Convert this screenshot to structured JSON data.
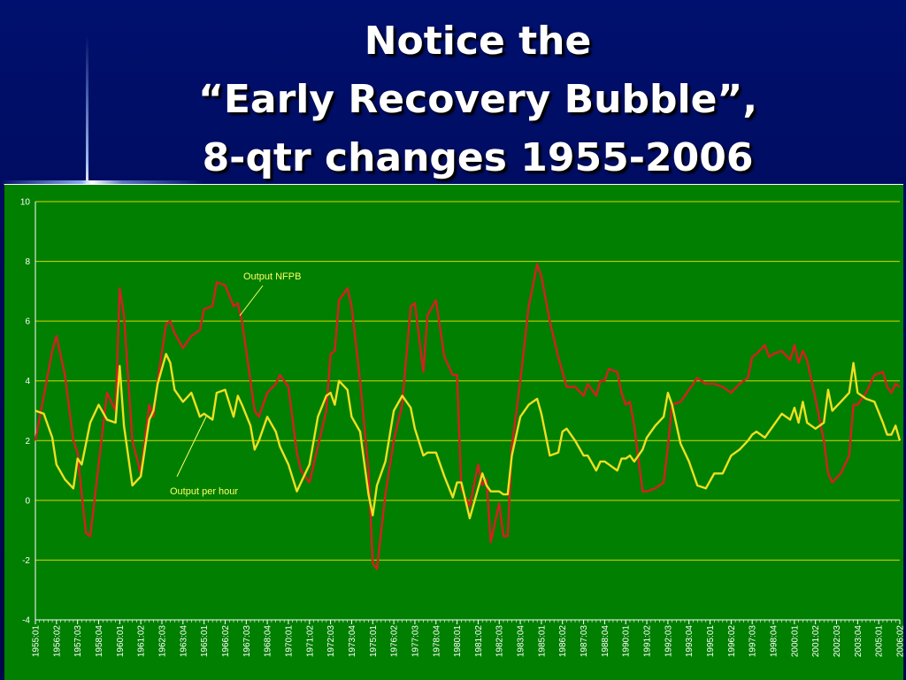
{
  "slide": {
    "title_lines": [
      "Notice the",
      "“Early Recovery Bubble”,",
      "8-qtr changes 1955-2006"
    ]
  },
  "colors": {
    "background": "#000a5a",
    "plot_area": "#007f00",
    "gridline": "#d8d800",
    "series_nfpb": "#d42020",
    "series_per_hour": "#f0e020"
  },
  "chart_data": {
    "type": "line",
    "ylim": [
      -4,
      10
    ],
    "yticks": [
      10,
      8,
      6,
      4,
      2,
      0,
      -2,
      -4
    ],
    "grid": true,
    "x_tick_labels": [
      "1955:01",
      "1956:02",
      "1957:03",
      "1958:04",
      "1960:01",
      "1961:02",
      "1962:03",
      "1963:04",
      "1965:01",
      "1966:02",
      "1967:03",
      "1968:04",
      "1970:01",
      "1971:02",
      "1972:03",
      "1973:04",
      "1975:01",
      "1976:02",
      "1977:03",
      "1978:04",
      "1980:01",
      "1981:02",
      "1982:03",
      "1983:04",
      "1985:01",
      "1986:02",
      "1987:03",
      "1988:04",
      "1990:01",
      "1991:02",
      "1992:03",
      "1993:04",
      "1995:01",
      "1996:02",
      "1997:03",
      "1998:04",
      "2000:01",
      "2001:02",
      "2002:03",
      "2003:04",
      "2005:01",
      "2006:02"
    ],
    "annotations": [
      {
        "text": "Output NFPB",
        "series": "nfpb"
      },
      {
        "text": "Output per hour",
        "series": "per_hour"
      }
    ],
    "series": [
      {
        "key": "nfpb",
        "name": "Output NFPB",
        "color": "#d42020",
        "points": [
          [
            "1955:01",
            2.0
          ],
          [
            "1955:03",
            3.5
          ],
          [
            "1956:01",
            5.0
          ],
          [
            "1956:02",
            5.5
          ],
          [
            "1956:04",
            4.2
          ],
          [
            "1957:02",
            2.0
          ],
          [
            "1957:03",
            1.6
          ],
          [
            "1957:04",
            0.2
          ],
          [
            "1958:01",
            -1.1
          ],
          [
            "1958:02",
            -1.2
          ],
          [
            "1958:04",
            1.2
          ],
          [
            "1959:02",
            3.6
          ],
          [
            "1959:04",
            3.0
          ],
          [
            "1960:01",
            7.1
          ],
          [
            "1960:02",
            6.2
          ],
          [
            "1960:04",
            2.0
          ],
          [
            "1961:02",
            0.9
          ],
          [
            "1961:04",
            3.2
          ],
          [
            "1962:01",
            2.8
          ],
          [
            "1962:02",
            4.0
          ],
          [
            "1962:04",
            5.9
          ],
          [
            "1963:01",
            6.0
          ],
          [
            "1963:02",
            5.6
          ],
          [
            "1963:04",
            5.1
          ],
          [
            "1964:02",
            5.5
          ],
          [
            "1964:04",
            5.7
          ],
          [
            "1965:01",
            6.4
          ],
          [
            "1965:03",
            6.5
          ],
          [
            "1965:04",
            7.3
          ],
          [
            "1966:02",
            7.2
          ],
          [
            "1966:04",
            6.5
          ],
          [
            "1967:01",
            6.6
          ],
          [
            "1967:02",
            6.0
          ],
          [
            "1967:04",
            4.0
          ],
          [
            "1968:01",
            3.0
          ],
          [
            "1968:02",
            2.8
          ],
          [
            "1968:04",
            3.6
          ],
          [
            "1969:02",
            3.9
          ],
          [
            "1969:03",
            4.2
          ],
          [
            "1970:01",
            3.8
          ],
          [
            "1970:03",
            1.6
          ],
          [
            "1970:04",
            1.0
          ],
          [
            "1971:02",
            0.6
          ],
          [
            "1971:04",
            1.8
          ],
          [
            "1972:02",
            3.0
          ],
          [
            "1972:03",
            4.9
          ],
          [
            "1972:04",
            5.0
          ],
          [
            "1973:01",
            6.7
          ],
          [
            "1973:03",
            7.1
          ],
          [
            "1973:04",
            6.5
          ],
          [
            "1974:02",
            4.0
          ],
          [
            "1974:04",
            1.0
          ],
          [
            "1975:01",
            -2.1
          ],
          [
            "1975:02",
            -2.3
          ],
          [
            "1975:04",
            0.2
          ],
          [
            "1976:02",
            2.0
          ],
          [
            "1976:04",
            3.2
          ],
          [
            "1977:02",
            6.5
          ],
          [
            "1977:03",
            6.6
          ],
          [
            "1978:01",
            4.3
          ],
          [
            "1978:02",
            6.2
          ],
          [
            "1978:04",
            6.7
          ],
          [
            "1979:02",
            4.8
          ],
          [
            "1979:04",
            4.2
          ],
          [
            "1980:01",
            4.2
          ],
          [
            "1980:02",
            0.4
          ],
          [
            "1980:04",
            -0.2
          ],
          [
            "1981:02",
            1.2
          ],
          [
            "1981:03",
            0.5
          ],
          [
            "1981:04",
            0.7
          ],
          [
            "1982:01",
            -1.4
          ],
          [
            "1982:03",
            -0.1
          ],
          [
            "1982:04",
            -1.2
          ],
          [
            "1983:01",
            -1.2
          ],
          [
            "1983:02",
            1.8
          ],
          [
            "1983:04",
            4.0
          ],
          [
            "1984:02",
            6.5
          ],
          [
            "1984:04",
            7.9
          ],
          [
            "1985:01",
            7.5
          ],
          [
            "1985:03",
            6.0
          ],
          [
            "1986:01",
            4.8
          ],
          [
            "1986:02",
            4.3
          ],
          [
            "1986:03",
            3.8
          ],
          [
            "1987:01",
            3.8
          ],
          [
            "1987:03",
            3.5
          ],
          [
            "1987:04",
            3.9
          ],
          [
            "1988:02",
            3.5
          ],
          [
            "1988:03",
            4.0
          ],
          [
            "1988:04",
            4.0
          ],
          [
            "1989:01",
            4.4
          ],
          [
            "1989:03",
            4.3
          ],
          [
            "1989:04",
            3.6
          ],
          [
            "1990:01",
            3.2
          ],
          [
            "1990:02",
            3.3
          ],
          [
            "1990:03",
            2.5
          ],
          [
            "1991:01",
            0.3
          ],
          [
            "1991:02",
            0.3
          ],
          [
            "1991:04",
            0.4
          ],
          [
            "1992:02",
            0.6
          ],
          [
            "1992:03",
            1.8
          ],
          [
            "1992:04",
            3.2
          ],
          [
            "1993:02",
            3.3
          ],
          [
            "1993:04",
            3.7
          ],
          [
            "1994:02",
            4.1
          ],
          [
            "1994:04",
            3.9
          ],
          [
            "1995:02",
            3.9
          ],
          [
            "1995:04",
            3.8
          ],
          [
            "1996:02",
            3.6
          ],
          [
            "1996:04",
            3.9
          ],
          [
            "1997:02",
            4.1
          ],
          [
            "1997:03",
            4.8
          ],
          [
            "1997:04",
            4.9
          ],
          [
            "1998:02",
            5.2
          ],
          [
            "1998:03",
            4.8
          ],
          [
            "1998:04",
            4.9
          ],
          [
            "1999:02",
            5.0
          ],
          [
            "1999:04",
            4.7
          ],
          [
            "2000:01",
            5.2
          ],
          [
            "2000:02",
            4.6
          ],
          [
            "2000:03",
            5.0
          ],
          [
            "2000:04",
            4.7
          ],
          [
            "2001:02",
            3.4
          ],
          [
            "2001:04",
            2.0
          ],
          [
            "2002:01",
            0.9
          ],
          [
            "2002:02",
            0.6
          ],
          [
            "2002:04",
            0.9
          ],
          [
            "2003:02",
            1.5
          ],
          [
            "2003:03",
            3.2
          ],
          [
            "2003:04",
            3.2
          ],
          [
            "2004:02",
            3.6
          ],
          [
            "2004:04",
            4.2
          ],
          [
            "2005:02",
            4.3
          ],
          [
            "2005:03",
            3.8
          ],
          [
            "2005:04",
            3.6
          ],
          [
            "2006:01",
            3.9
          ],
          [
            "2006:02",
            3.8
          ]
        ]
      },
      {
        "key": "per_hour",
        "name": "Output per hour",
        "color": "#f0e020",
        "points": [
          [
            "1955:01",
            3.0
          ],
          [
            "1955:03",
            2.9
          ],
          [
            "1956:01",
            2.1
          ],
          [
            "1956:02",
            1.2
          ],
          [
            "1956:04",
            0.7
          ],
          [
            "1957:02",
            0.4
          ],
          [
            "1957:03",
            1.4
          ],
          [
            "1957:04",
            1.2
          ],
          [
            "1958:02",
            2.6
          ],
          [
            "1958:04",
            3.2
          ],
          [
            "1959:02",
            2.7
          ],
          [
            "1959:04",
            2.6
          ],
          [
            "1960:01",
            4.5
          ],
          [
            "1960:02",
            2.5
          ],
          [
            "1960:04",
            0.5
          ],
          [
            "1961:02",
            0.8
          ],
          [
            "1961:04",
            2.7
          ],
          [
            "1962:01",
            3.0
          ],
          [
            "1962:02",
            3.9
          ],
          [
            "1962:04",
            4.9
          ],
          [
            "1963:01",
            4.6
          ],
          [
            "1963:02",
            3.7
          ],
          [
            "1963:04",
            3.3
          ],
          [
            "1964:02",
            3.6
          ],
          [
            "1964:04",
            2.8
          ],
          [
            "1965:01",
            2.9
          ],
          [
            "1965:03",
            2.7
          ],
          [
            "1965:04",
            3.6
          ],
          [
            "1966:02",
            3.7
          ],
          [
            "1966:04",
            2.8
          ],
          [
            "1967:01",
            3.5
          ],
          [
            "1967:02",
            3.2
          ],
          [
            "1967:04",
            2.5
          ],
          [
            "1968:01",
            1.7
          ],
          [
            "1968:02",
            2.0
          ],
          [
            "1968:04",
            2.8
          ],
          [
            "1969:02",
            2.3
          ],
          [
            "1969:03",
            1.8
          ],
          [
            "1970:01",
            1.2
          ],
          [
            "1970:03",
            0.3
          ],
          [
            "1970:04",
            0.6
          ],
          [
            "1971:02",
            1.2
          ],
          [
            "1971:04",
            2.8
          ],
          [
            "1972:02",
            3.5
          ],
          [
            "1972:03",
            3.6
          ],
          [
            "1972:04",
            3.2
          ],
          [
            "1973:01",
            4.0
          ],
          [
            "1973:03",
            3.7
          ],
          [
            "1973:04",
            2.8
          ],
          [
            "1974:02",
            2.3
          ],
          [
            "1974:04",
            0.2
          ],
          [
            "1975:01",
            -0.5
          ],
          [
            "1975:02",
            0.5
          ],
          [
            "1975:04",
            1.3
          ],
          [
            "1976:02",
            3.0
          ],
          [
            "1976:04",
            3.5
          ],
          [
            "1977:02",
            3.1
          ],
          [
            "1977:03",
            2.4
          ],
          [
            "1978:01",
            1.5
          ],
          [
            "1978:02",
            1.6
          ],
          [
            "1978:04",
            1.6
          ],
          [
            "1979:02",
            0.8
          ],
          [
            "1979:04",
            0.1
          ],
          [
            "1980:01",
            0.6
          ],
          [
            "1980:02",
            0.6
          ],
          [
            "1980:04",
            -0.6
          ],
          [
            "1981:02",
            0.4
          ],
          [
            "1981:03",
            0.9
          ],
          [
            "1981:04",
            0.5
          ],
          [
            "1982:01",
            0.3
          ],
          [
            "1982:03",
            0.3
          ],
          [
            "1982:04",
            0.2
          ],
          [
            "1983:01",
            0.2
          ],
          [
            "1983:02",
            1.5
          ],
          [
            "1983:04",
            2.8
          ],
          [
            "1984:02",
            3.2
          ],
          [
            "1984:04",
            3.4
          ],
          [
            "1985:01",
            2.9
          ],
          [
            "1985:03",
            1.5
          ],
          [
            "1986:01",
            1.6
          ],
          [
            "1986:02",
            2.3
          ],
          [
            "1986:03",
            2.4
          ],
          [
            "1987:01",
            2.0
          ],
          [
            "1987:03",
            1.5
          ],
          [
            "1987:04",
            1.5
          ],
          [
            "1988:02",
            1.0
          ],
          [
            "1988:03",
            1.3
          ],
          [
            "1988:04",
            1.3
          ],
          [
            "1989:01",
            1.2
          ],
          [
            "1989:03",
            1.0
          ],
          [
            "1989:04",
            1.4
          ],
          [
            "1990:01",
            1.4
          ],
          [
            "1990:02",
            1.5
          ],
          [
            "1990:03",
            1.3
          ],
          [
            "1991:01",
            1.7
          ],
          [
            "1991:02",
            2.1
          ],
          [
            "1991:04",
            2.5
          ],
          [
            "1992:02",
            2.8
          ],
          [
            "1992:03",
            3.6
          ],
          [
            "1992:04",
            3.2
          ],
          [
            "1993:02",
            1.9
          ],
          [
            "1993:04",
            1.3
          ],
          [
            "1994:02",
            0.5
          ],
          [
            "1994:04",
            0.4
          ],
          [
            "1995:02",
            0.9
          ],
          [
            "1995:04",
            0.9
          ],
          [
            "1996:02",
            1.5
          ],
          [
            "1996:04",
            1.7
          ],
          [
            "1997:02",
            2.0
          ],
          [
            "1997:03",
            2.2
          ],
          [
            "1997:04",
            2.3
          ],
          [
            "1998:02",
            2.1
          ],
          [
            "1998:03",
            2.3
          ],
          [
            "1998:04",
            2.5
          ],
          [
            "1999:02",
            2.9
          ],
          [
            "1999:04",
            2.7
          ],
          [
            "2000:01",
            3.1
          ],
          [
            "2000:02",
            2.6
          ],
          [
            "2000:03",
            3.3
          ],
          [
            "2000:04",
            2.6
          ],
          [
            "2001:02",
            2.4
          ],
          [
            "2001:04",
            2.6
          ],
          [
            "2002:01",
            3.7
          ],
          [
            "2002:02",
            3.0
          ],
          [
            "2002:04",
            3.3
          ],
          [
            "2003:02",
            3.6
          ],
          [
            "2003:03",
            4.6
          ],
          [
            "2003:04",
            3.6
          ],
          [
            "2004:02",
            3.4
          ],
          [
            "2004:04",
            3.3
          ],
          [
            "2005:02",
            2.6
          ],
          [
            "2005:03",
            2.2
          ],
          [
            "2005:04",
            2.2
          ],
          [
            "2006:01",
            2.5
          ],
          [
            "2006:02",
            2.0
          ]
        ]
      }
    ]
  }
}
